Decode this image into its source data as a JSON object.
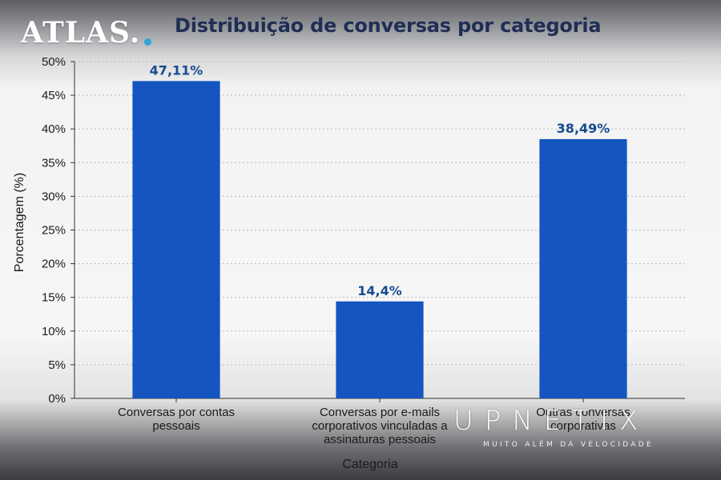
{
  "branding": {
    "logo": "ATLAS.",
    "watermark": "UPNETIX",
    "watermark_tagline": "MUITO ALÉM DA VELOCIDADE"
  },
  "chart_data": {
    "type": "bar",
    "title": "Distribuição de conversas por categoria",
    "xlabel": "Categoria",
    "ylabel": "Porcentagem (%)",
    "ylim": [
      0,
      50
    ],
    "yticks": [
      0,
      5,
      10,
      15,
      20,
      25,
      30,
      35,
      40,
      45,
      50
    ],
    "ytick_labels": [
      "0%",
      "5%",
      "10%",
      "15%",
      "20%",
      "25%",
      "30%",
      "35%",
      "40%",
      "45%",
      "50%"
    ],
    "grid": "horizontal dashed",
    "bar_color": "#1455c0",
    "label_color": "#174c8f",
    "categories": [
      [
        "Conversas por contas",
        "pessoais"
      ],
      [
        "Conversas por e-mails",
        "corporativos vinculadas a",
        "assinaturas pessoais"
      ],
      [
        "Outras conversas",
        "corporativas"
      ]
    ],
    "values": [
      47.11,
      14.4,
      38.49
    ],
    "value_labels": [
      "47,11%",
      "14,4%",
      "38,49%"
    ]
  }
}
